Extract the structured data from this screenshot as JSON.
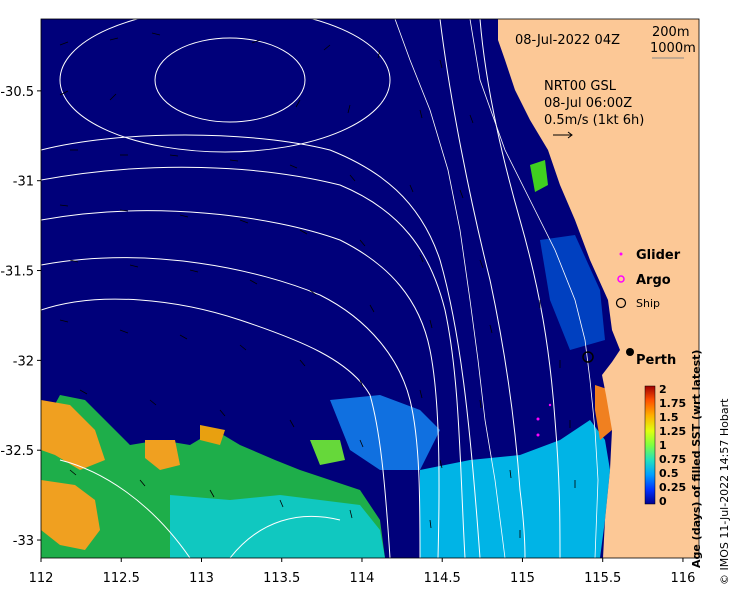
{
  "axes": {
    "x_ticks": [
      "112",
      "112.5",
      "113",
      "113.5",
      "114",
      "114.5",
      "115",
      "115.5",
      "116"
    ],
    "y_ticks": [
      "-30.5",
      "-31",
      "-31.5",
      "-32",
      "-32.5",
      "-33"
    ],
    "x_range": [
      112,
      116.1
    ],
    "y_range": [
      -33.1,
      -30.1
    ]
  },
  "header": {
    "date_label": "08-Jul-2022 04Z",
    "contour_200": "200m",
    "contour_1000": "1000m"
  },
  "current_info": {
    "model": "NRT00 GSL",
    "time": "08-Jul 06:00Z",
    "scale": "0.5m/s (1kt 6h)"
  },
  "legend": {
    "glider": "Glider",
    "argo": "Argo",
    "ship": "Ship"
  },
  "places": {
    "perth": "Perth"
  },
  "colorbar": {
    "ticks": [
      "2",
      "1.75",
      "1.5",
      "1.25",
      "1",
      "0.75",
      "0.5",
      "0.25",
      "0"
    ],
    "label": "Age (days) of filled SST (wrt latest)"
  },
  "credit": "© IMOS 11-Jul-2022 14:57 Hobart",
  "colors": {
    "ocean": "#00007a",
    "land": "#fcc896",
    "green": "#1eae4a",
    "cyan": "#00b4e6",
    "orange": "#f0a020",
    "lime": "#66d83a",
    "glider": "#ff00ff",
    "argo": "#ff00ff"
  }
}
